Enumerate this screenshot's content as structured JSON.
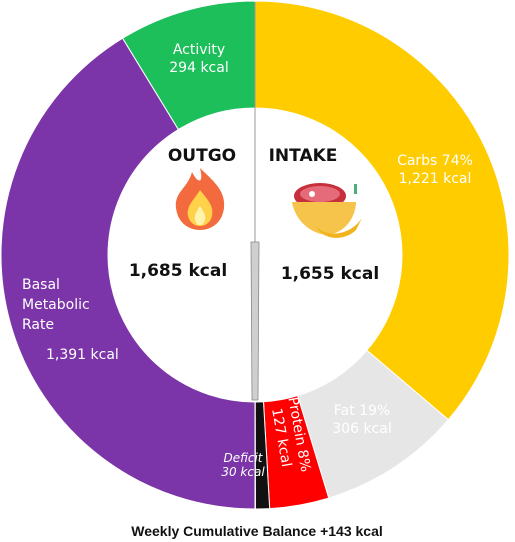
{
  "chart_data": {
    "type": "donut",
    "segments": [
      {
        "id": "carbs",
        "side": "intake",
        "label_lines": [
          "Carbs 74%",
          "1,221 kcal"
        ],
        "value": 1221,
        "color": "#FFCC00",
        "text_color": "#222222"
      },
      {
        "id": "fat",
        "side": "intake",
        "label_lines": [
          "Fat 19%",
          "306 kcal"
        ],
        "value": 306,
        "color": "#E6E6E6",
        "text_color": "#222222"
      },
      {
        "id": "protein",
        "side": "intake",
        "label_lines": [
          "Protein 8%",
          "127 kcal"
        ],
        "value": 127,
        "color": "#FF0000",
        "text_color": "#ffffff",
        "rotated": true
      },
      {
        "id": "deficit",
        "side": "intake",
        "label_lines": [
          "Deficit",
          "30 kcal"
        ],
        "value": 30,
        "color": "#111111",
        "text_color": "#ffffff",
        "italic": true
      },
      {
        "id": "bmr",
        "side": "outgo",
        "label_lines": [
          "Basal",
          "Metabolic",
          "Rate",
          "1,391 kcal"
        ],
        "value": 1391,
        "color": "#7B35A8",
        "text_color": "#ffffff"
      },
      {
        "id": "activity",
        "side": "outgo",
        "label_lines": [
          "Activity",
          "294 kcal"
        ],
        "value": 294,
        "color": "#1DBF5A",
        "text_color": "#ffffff"
      }
    ],
    "outgo": {
      "title": "OUTGO",
      "total_label": "1,685 kcal",
      "icon": "fire-icon"
    },
    "intake": {
      "title": "INTAKE",
      "total_label": "1,655 kcal",
      "icon": "food-bowl-icon"
    },
    "footer": "Weekly Cumulative Balance +143 kcal"
  }
}
